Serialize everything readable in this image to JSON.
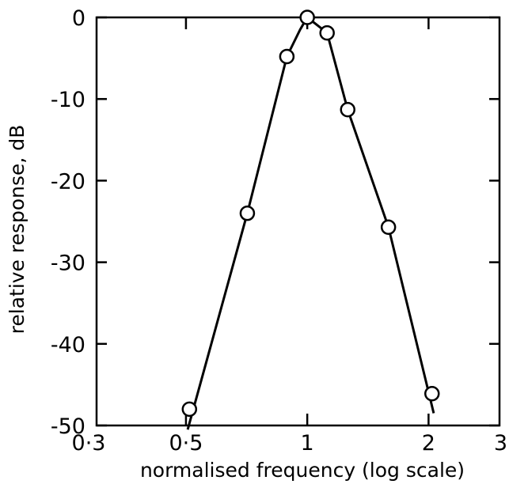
{
  "chart_data": {
    "type": "line",
    "title": "",
    "xlabel": "normalised frequency (log scale)",
    "ylabel": "relative response, dB",
    "x_scale": "log",
    "xlim": [
      0.3,
      3
    ],
    "ylim": [
      -50,
      0
    ],
    "grid": false,
    "legend": "none",
    "x_ticks": [
      0.3,
      0.5,
      1,
      2,
      3
    ],
    "x_tick_labels": [
      "0·3",
      "0·5",
      "1",
      "2",
      "3"
    ],
    "y_ticks": [
      0,
      -10,
      -20,
      -30,
      -40,
      -50
    ],
    "y_tick_labels": [
      "0",
      "-10",
      "-20",
      "-30",
      "-40",
      "-50"
    ],
    "series": [
      {
        "type": "scatter",
        "marker": "open-circle",
        "x": [
          0.51,
          0.71,
          0.89,
          1.0,
          1.12,
          1.26,
          1.59,
          2.04
        ],
        "y": [
          -48.0,
          -24.0,
          -4.8,
          0.0,
          -1.9,
          -11.3,
          -25.7,
          -46.1
        ]
      },
      {
        "type": "line",
        "x": [
          0.505,
          0.71,
          0.89,
          0.96,
          1.0,
          1.05,
          1.12,
          1.26,
          1.59,
          2.06
        ],
        "y": [
          -50.5,
          -24.0,
          -4.8,
          -1.5,
          0.0,
          -0.8,
          -1.9,
          -11.3,
          -25.7,
          -48.5
        ]
      }
    ]
  }
}
